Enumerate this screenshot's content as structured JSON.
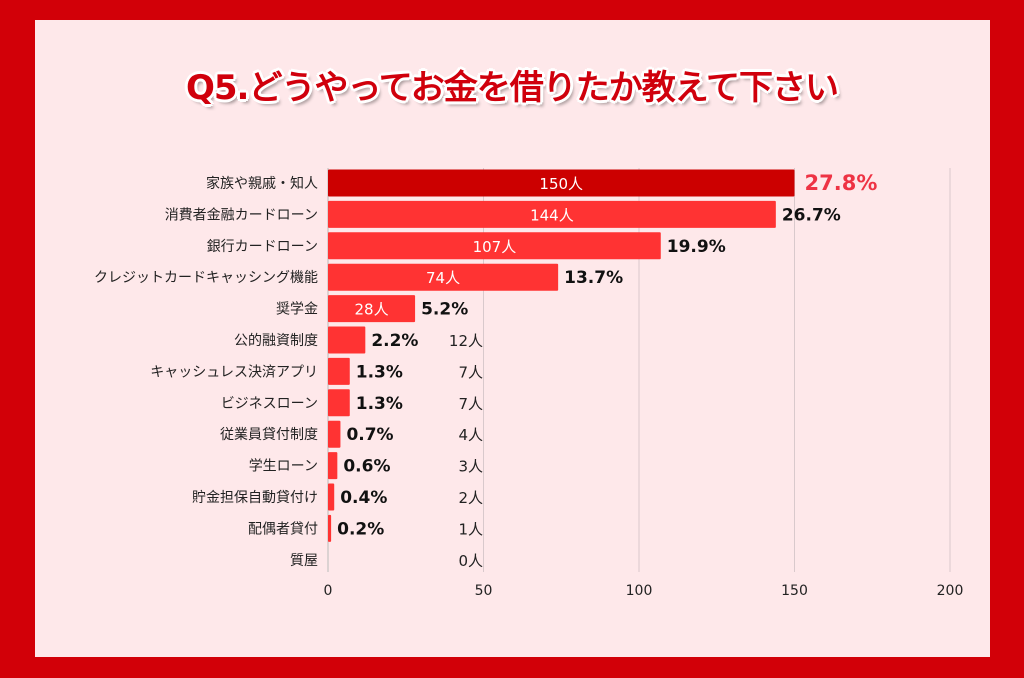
{
  "title": "Q5.どうやってお金を借りたか教えて下さい",
  "colors": {
    "frame": "#d20008",
    "panel": "#fee8ea",
    "bar_top": "#cc0000",
    "bar": "#ff3333",
    "pct_top": "#ee3344"
  },
  "chart_data": {
    "type": "bar",
    "orientation": "horizontal",
    "title": "Q5.どうやってお金を借りたか教えて下さい",
    "categories": [
      "家族や親戚・知人",
      "消費者金融カードローン",
      "銀行カードローン",
      "クレジットカードキャッシング機能",
      "奨学金",
      "公的融資制度",
      "キャッシュレス決済アプリ",
      "ビジネスローン",
      "従業員貸付制度",
      "学生ローン",
      "貯金担保自動貸付け",
      "配偶者貸付",
      "質屋"
    ],
    "values": [
      150,
      144,
      107,
      74,
      28,
      12,
      7,
      7,
      4,
      3,
      2,
      1,
      0
    ],
    "value_labels": [
      "150人",
      "144人",
      "107人",
      "74人",
      "28人",
      "12人",
      "7人",
      "7人",
      "4人",
      "3人",
      "2人",
      "1人",
      "0人"
    ],
    "percent_labels": [
      "27.8%",
      "26.7%",
      "19.9%",
      "13.7%",
      "5.2%",
      "2.2%",
      "1.3%",
      "1.3%",
      "0.7%",
      "0.6%",
      "0.4%",
      "0.2%",
      ""
    ],
    "xlim": [
      0,
      200
    ],
    "xticks": [
      "0",
      "50",
      "100",
      "150",
      "200"
    ],
    "grid": true
  }
}
